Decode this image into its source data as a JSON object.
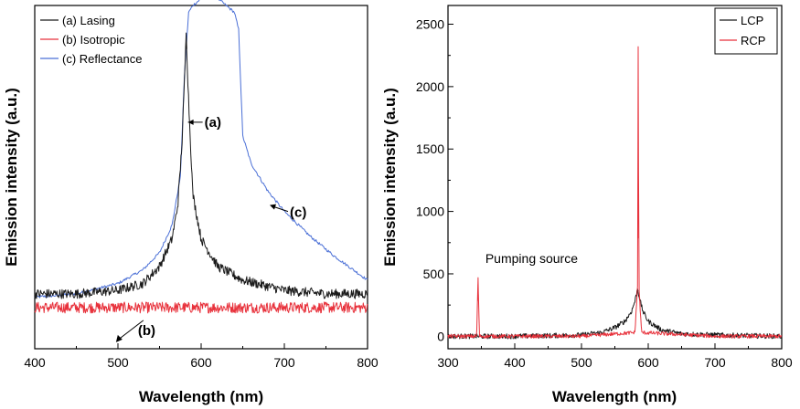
{
  "colors": {
    "black": "#1a1a1a",
    "red": "#e8323c",
    "blue": "#4a6fd6"
  },
  "chart_data": [
    {
      "type": "line",
      "title": "",
      "xlabel": "Wavelength (nm)",
      "ylabel": "Emission intensity (a.u.)",
      "xlim": [
        400,
        800
      ],
      "ylim": [
        0,
        1
      ],
      "x_ticks": [
        400,
        500,
        600,
        700,
        800
      ],
      "y_ticks": [],
      "grid": false,
      "legend": "top-left",
      "series": [
        {
          "name": "(a) Lasing",
          "color": "#1a1a1a",
          "x": [
            400,
            450,
            500,
            530,
            550,
            565,
            572,
            577,
            580,
            582,
            585,
            590,
            600,
            620,
            650,
            700,
            750,
            800
          ],
          "y": [
            0.16,
            0.16,
            0.17,
            0.19,
            0.24,
            0.32,
            0.42,
            0.6,
            0.78,
            0.92,
            0.72,
            0.45,
            0.32,
            0.24,
            0.2,
            0.17,
            0.16,
            0.16
          ]
        },
        {
          "name": "(b) Isotropic",
          "color": "#e8323c",
          "x": [
            400,
            500,
            600,
            700,
            800
          ],
          "y": [
            0.12,
            0.12,
            0.12,
            0.12,
            0.12
          ]
        },
        {
          "name": "(c) Reflectance",
          "color": "#4a6fd6",
          "x": [
            400,
            450,
            500,
            530,
            550,
            565,
            575,
            580,
            585,
            590,
            600,
            610,
            620,
            630,
            640,
            645,
            650,
            660,
            680,
            700,
            730,
            760,
            800
          ],
          "y": [
            0.15,
            0.16,
            0.19,
            0.23,
            0.28,
            0.36,
            0.5,
            0.8,
            0.98,
            1.0,
            1.02,
            1.03,
            1.02,
            1.0,
            0.98,
            0.93,
            0.62,
            0.54,
            0.46,
            0.4,
            0.33,
            0.27,
            0.2
          ]
        }
      ],
      "annotations": [
        {
          "text": "(a)",
          "x": 582,
          "y": 0.66
        },
        {
          "text": "(b)",
          "x": 535,
          "y": 0.12
        },
        {
          "text": "(c)",
          "x": 700,
          "y": 0.4
        }
      ]
    },
    {
      "type": "line",
      "title": "",
      "xlabel": "Wavelength (nm)",
      "ylabel": "Emission intensity (a.u.)",
      "xlim": [
        300,
        800
      ],
      "ylim": [
        -100,
        2650
      ],
      "x_ticks": [
        300,
        400,
        500,
        600,
        700,
        800
      ],
      "y_ticks": [
        0,
        500,
        1000,
        1500,
        2000,
        2500
      ],
      "grid": false,
      "legend": "top-right",
      "series": [
        {
          "name": "LCP",
          "color": "#1a1a1a",
          "x": [
            300,
            400,
            500,
            530,
            550,
            565,
            575,
            580,
            584,
            588,
            592,
            600,
            620,
            650,
            700,
            800
          ],
          "y": [
            0,
            0,
            10,
            30,
            70,
            120,
            200,
            280,
            380,
            280,
            200,
            120,
            50,
            20,
            10,
            0
          ]
        },
        {
          "name": "RCP",
          "color": "#e8323c",
          "x": [
            300,
            343,
            345,
            347,
            400,
            500,
            580,
            584,
            585,
            586,
            590,
            700,
            800
          ],
          "y": [
            0,
            0,
            470,
            0,
            0,
            0,
            30,
            400,
            2320,
            400,
            30,
            0,
            0
          ]
        }
      ],
      "annotations": [
        {
          "text": "Pumping source",
          "x": 345,
          "y": 470
        }
      ]
    }
  ]
}
